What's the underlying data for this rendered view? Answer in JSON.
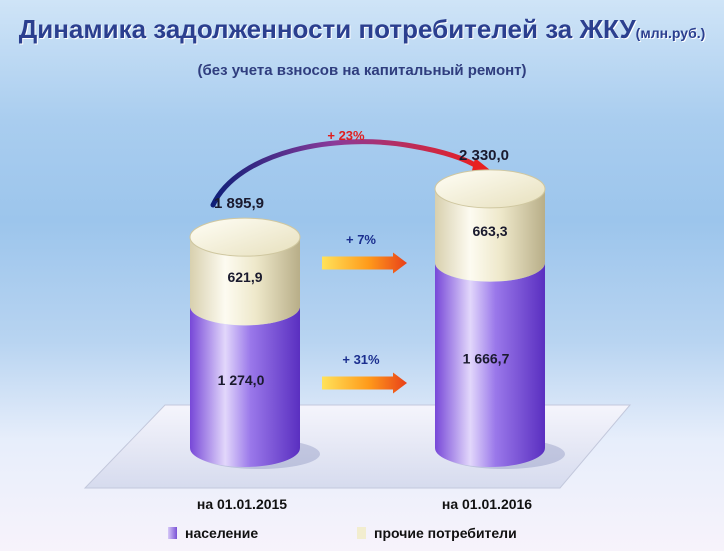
{
  "title": "Динамика задолженности потребителей за ЖКУ",
  "title_unit": "(млн.руб.)",
  "subtitle": "(без учета взносов на капитальный  ремонт)",
  "growth_total_label": "+ 23%",
  "colors": {
    "population": "#8c68e0",
    "other": "#f1ecd2",
    "title": "#2b3f8f",
    "arrow": "#ffb020",
    "arc_start": "#1a2a80",
    "arc_end": "#e82020"
  },
  "chart_data": {
    "type": "bar",
    "stacked": true,
    "style": "3d-cylinder",
    "categories": [
      "на 01.01.2015",
      "на 01.01.2016"
    ],
    "series": [
      {
        "name": "население",
        "values": [
          1274.0,
          1666.7
        ],
        "labels": [
          "1 274,0",
          "1 666,7"
        ],
        "color": "#8c68e0"
      },
      {
        "name": "прочие потребители",
        "values": [
          621.9,
          663.3
        ],
        "labels": [
          "621,9",
          "663,3"
        ],
        "color": "#f1ecd2"
      }
    ],
    "totals": [
      1895.9,
      2330.0
    ],
    "total_labels": [
      "1 895,9",
      "2 330,0"
    ],
    "growth": [
      {
        "series": "прочие потребители",
        "label": "+ 7%"
      },
      {
        "series": "население",
        "label": "+ 31%"
      }
    ],
    "legend_position": "bottom",
    "grid": false
  }
}
